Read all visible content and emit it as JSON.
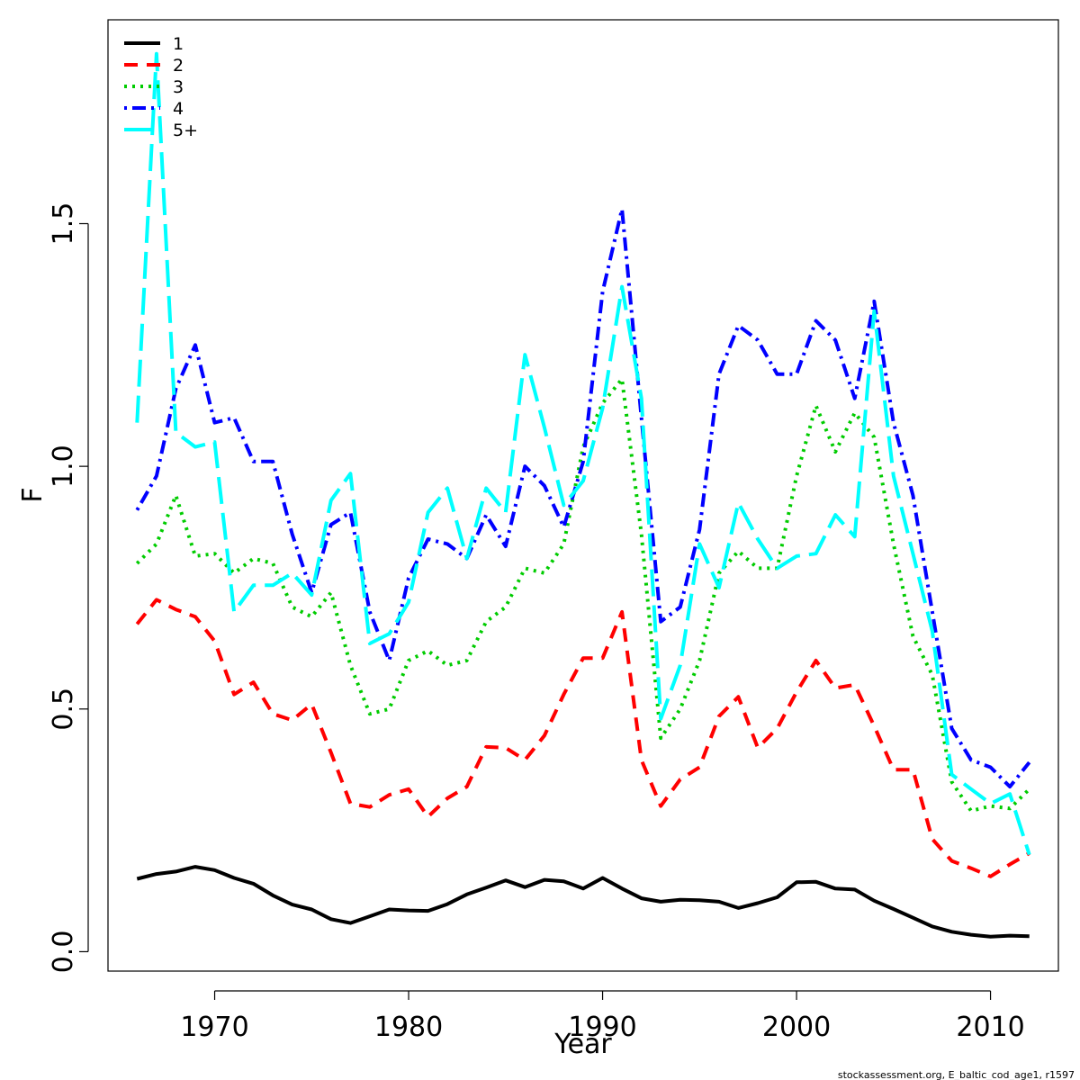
{
  "chart_data": {
    "type": "line",
    "title": "",
    "xlabel": "Year",
    "ylabel": "F",
    "xlim": [
      1964.5,
      2013.5
    ],
    "ylim": [
      -0.04,
      1.92
    ],
    "x_ticks": [
      1970,
      1980,
      1990,
      2000,
      2010
    ],
    "x_tick_labels": [
      "1970",
      "1980",
      "1990",
      "2000",
      "2010"
    ],
    "y_ticks": [
      0.0,
      0.5,
      1.0,
      1.5
    ],
    "y_tick_labels": [
      "0.0",
      "0.5",
      "1.0",
      "1.5"
    ],
    "grid": false,
    "legend_position": "top-left",
    "x": [
      1966,
      1967,
      1968,
      1969,
      1970,
      1971,
      1972,
      1973,
      1974,
      1975,
      1976,
      1977,
      1978,
      1979,
      1980,
      1981,
      1982,
      1983,
      1984,
      1985,
      1986,
      1987,
      1988,
      1989,
      1990,
      1991,
      1992,
      1993,
      1994,
      1995,
      1996,
      1997,
      1998,
      1999,
      2000,
      2001,
      2002,
      2003,
      2004,
      2005,
      2006,
      2007,
      2008,
      2009,
      2010,
      2011,
      2012
    ],
    "series": [
      {
        "name": "1",
        "color": "#000000",
        "dash": "solid",
        "values": [
          0.15,
          0.16,
          0.165,
          0.175,
          0.168,
          0.152,
          0.14,
          0.116,
          0.097,
          0.087,
          0.067,
          0.059,
          0.073,
          0.087,
          0.085,
          0.084,
          0.098,
          0.118,
          0.132,
          0.147,
          0.133,
          0.148,
          0.145,
          0.13,
          0.152,
          0.13,
          0.11,
          0.103,
          0.107,
          0.106,
          0.103,
          0.09,
          0.1,
          0.112,
          0.143,
          0.144,
          0.13,
          0.128,
          0.105,
          0.088,
          0.07,
          0.052,
          0.041,
          0.035,
          0.031,
          0.033,
          0.032
        ]
      },
      {
        "name": "2",
        "color": "#ff0000",
        "dash": "dashed",
        "values": [
          0.675,
          0.725,
          0.705,
          0.69,
          0.64,
          0.53,
          0.555,
          0.49,
          0.477,
          0.51,
          0.41,
          0.305,
          0.298,
          0.323,
          0.335,
          0.278,
          0.316,
          0.34,
          0.422,
          0.42,
          0.395,
          0.445,
          0.53,
          0.605,
          0.605,
          0.7,
          0.395,
          0.3,
          0.355,
          0.38,
          0.485,
          0.525,
          0.42,
          0.46,
          0.535,
          0.6,
          0.543,
          0.55,
          0.465,
          0.375,
          0.375,
          0.232,
          0.187,
          0.172,
          0.155,
          0.18,
          0.203
        ]
      },
      {
        "name": "3",
        "color": "#00cc00",
        "dash": "dotted",
        "values": [
          0.8,
          0.84,
          0.94,
          0.815,
          0.82,
          0.78,
          0.81,
          0.8,
          0.71,
          0.69,
          0.74,
          0.59,
          0.49,
          0.5,
          0.6,
          0.62,
          0.59,
          0.6,
          0.68,
          0.71,
          0.79,
          0.78,
          0.84,
          1.04,
          1.13,
          1.18,
          0.86,
          0.44,
          0.5,
          0.6,
          0.78,
          0.825,
          0.79,
          0.79,
          0.98,
          1.125,
          1.03,
          1.11,
          1.06,
          0.84,
          0.65,
          0.57,
          0.35,
          0.29,
          0.3,
          0.295,
          0.335
        ]
      },
      {
        "name": "4",
        "color": "#0000ff",
        "dash": "dashdot",
        "values": [
          0.91,
          0.98,
          1.16,
          1.25,
          1.09,
          1.1,
          1.01,
          1.01,
          0.86,
          0.74,
          0.88,
          0.905,
          0.7,
          0.6,
          0.77,
          0.85,
          0.84,
          0.81,
          0.9,
          0.835,
          1.0,
          0.96,
          0.875,
          1.01,
          1.36,
          1.53,
          1.1,
          0.68,
          0.71,
          0.87,
          1.19,
          1.29,
          1.26,
          1.19,
          1.19,
          1.3,
          1.26,
          1.14,
          1.34,
          1.09,
          0.94,
          0.7,
          0.46,
          0.395,
          0.38,
          0.34,
          0.39
        ]
      },
      {
        "name": "5+",
        "color": "#00ffff",
        "dash": "longdash",
        "values": [
          1.09,
          1.85,
          1.07,
          1.04,
          1.05,
          0.7,
          0.755,
          0.755,
          0.78,
          0.735,
          0.93,
          0.985,
          0.635,
          0.655,
          0.72,
          0.905,
          0.955,
          0.81,
          0.955,
          0.905,
          1.23,
          1.08,
          0.92,
          0.97,
          1.12,
          1.37,
          1.14,
          0.48,
          0.59,
          0.84,
          0.75,
          0.925,
          0.85,
          0.79,
          0.815,
          0.82,
          0.9,
          0.855,
          1.32,
          0.98,
          0.82,
          0.66,
          0.365,
          0.335,
          0.305,
          0.325,
          0.2
        ]
      }
    ]
  },
  "footer_note": "stockassessment.org, E_baltic_cod_age1, r1597"
}
